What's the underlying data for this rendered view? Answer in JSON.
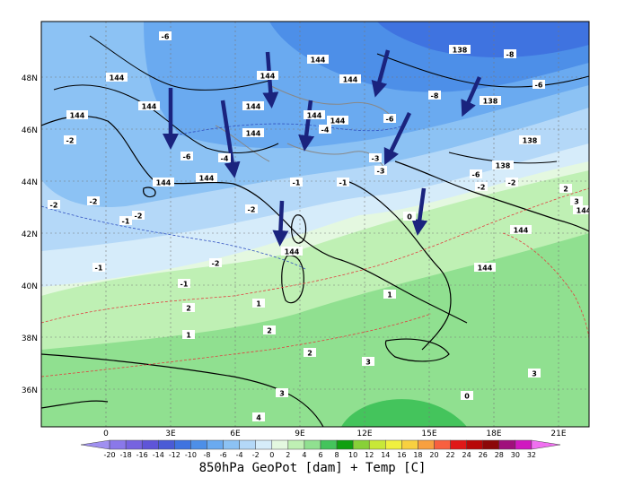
{
  "caption": "850hPa GeoPot [dam] + Temp [C]",
  "lat_labels": [
    "48N",
    "46N",
    "44N",
    "42N",
    "40N",
    "38N",
    "36N"
  ],
  "lon_labels": [
    "0",
    "3E",
    "6E",
    "9E",
    "12E",
    "15E",
    "18E",
    "21E"
  ],
  "legend": {
    "values": [
      "-20",
      "-18",
      "-16",
      "-14",
      "-12",
      "-10",
      "-8",
      "-6",
      "-4",
      "-2",
      "0",
      "2",
      "4",
      "6",
      "8",
      "10",
      "12",
      "14",
      "16",
      "18",
      "20",
      "22",
      "24",
      "26",
      "28",
      "30",
      "32"
    ],
    "colors": [
      "#a090f0",
      "#8a78ea",
      "#7663e0",
      "#5f55d8",
      "#4a5bd6",
      "#3f73e0",
      "#4d8fe8",
      "#6aaaf0",
      "#8cc2f4",
      "#b4d8f8",
      "#d6ecfa",
      "#e4f8e0",
      "#bff0b4",
      "#90e090",
      "#44c45c",
      "#10a010",
      "#88d038",
      "#c8e838",
      "#f0f040",
      "#f8d040",
      "#f8a040",
      "#f86040",
      "#e01818",
      "#b80808",
      "#8c0808",
      "#a0107c",
      "#d018c0",
      "#f070f0"
    ]
  },
  "geopotential_labels": [
    "144",
    "144",
    "144",
    "144",
    "144",
    "144",
    "144",
    "144",
    "144",
    "144",
    "144",
    "144",
    "144",
    "138",
    "138",
    "138",
    "138",
    "144",
    "144",
    "144"
  ],
  "temperature_labels": [
    "-6",
    "-6",
    "-8",
    "-8",
    "-6",
    "-6",
    "-4",
    "-4",
    "-2",
    "-2",
    "-2",
    "-2",
    "-2",
    "-1",
    "-1",
    "-1",
    "-3",
    "-3",
    "-2",
    "-6",
    "-2",
    "0",
    "1",
    "1",
    "2",
    "2",
    "3",
    "3",
    "4",
    "0",
    "2",
    "3",
    "3",
    "2",
    "1",
    "-1",
    "-1",
    "-2"
  ],
  "wind_arrows_count": 13
}
